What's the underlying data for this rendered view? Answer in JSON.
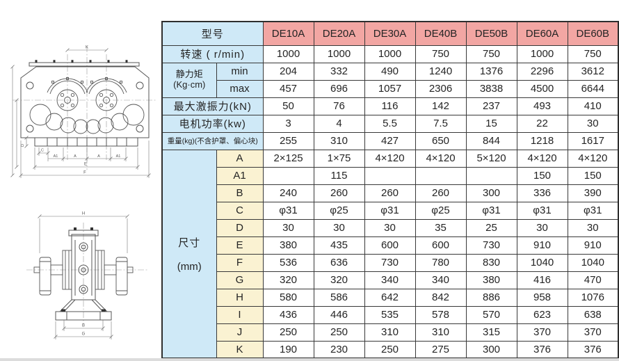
{
  "colors": {
    "header_pink": "#f2a6a3",
    "label_blue": "#cfe9f7",
    "dim_cream": "#faf2d2",
    "border": "#383838"
  },
  "table": {
    "header": {
      "model_label": "型号",
      "models": [
        "DE10A",
        "DE20A",
        "DE30A",
        "DE40B",
        "DE50B",
        "DE60A",
        "DE60B"
      ]
    },
    "speed": {
      "label": "转速 ( r/min)",
      "values": [
        "1000",
        "1000",
        "1000",
        "750",
        "750",
        "1000",
        "750"
      ]
    },
    "static_moment": {
      "label_line1": "静力矩",
      "label_line2": "(Kg·cm)",
      "min_label": "min",
      "max_label": "max",
      "min_values": [
        "204",
        "332",
        "490",
        "1240",
        "1376",
        "2296",
        "3612"
      ],
      "max_values": [
        "457",
        "696",
        "1057",
        "2306",
        "3838",
        "4500",
        "6644"
      ]
    },
    "max_force": {
      "label": "最大激振力(kN)",
      "values": [
        "50",
        "76",
        "116",
        "142",
        "237",
        "493",
        "410"
      ]
    },
    "motor_power": {
      "label": "电机功率(kw)",
      "values": [
        "3",
        "4",
        "5.5",
        "7.5",
        "15",
        "22",
        "30"
      ]
    },
    "weight": {
      "label": "重量(kg)(不含护罩、偏心块)",
      "values": [
        "255",
        "310",
        "427",
        "650",
        "844",
        "1218",
        "1617"
      ]
    },
    "dimensions": {
      "label_line1": "尺寸",
      "label_line2": "(mm)",
      "rows": [
        {
          "name": "A",
          "values": [
            "2×125",
            "1×75",
            "4×120",
            "4×120",
            "5×120",
            "4×120",
            "4×120"
          ]
        },
        {
          "name": "A1",
          "values": [
            "",
            "115",
            "",
            "",
            "",
            "150",
            "150"
          ]
        },
        {
          "name": "B",
          "values": [
            "240",
            "260",
            "260",
            "260",
            "300",
            "336",
            "390"
          ]
        },
        {
          "name": "C",
          "values": [
            "φ31",
            "φ25",
            "φ31",
            "φ25",
            "φ31",
            "φ31",
            "φ31"
          ]
        },
        {
          "name": "D",
          "values": [
            "30",
            "30",
            "30",
            "35",
            "25",
            "30",
            "30"
          ]
        },
        {
          "name": "E",
          "values": [
            "380",
            "435",
            "600",
            "600",
            "730",
            "910",
            "910"
          ]
        },
        {
          "name": "F",
          "values": [
            "536",
            "636",
            "730",
            "780",
            "830",
            "1040",
            "1040"
          ]
        },
        {
          "name": "G",
          "values": [
            "320",
            "320",
            "340",
            "340",
            "380",
            "416",
            "470"
          ]
        },
        {
          "name": "H",
          "values": [
            "580",
            "586",
            "642",
            "842",
            "886",
            "958",
            "1076"
          ]
        },
        {
          "name": "I",
          "values": [
            "436",
            "446",
            "535",
            "578",
            "570",
            "623",
            "638"
          ]
        },
        {
          "name": "J",
          "values": [
            "250",
            "250",
            "310",
            "310",
            "315",
            "370",
            "370"
          ]
        },
        {
          "name": "K",
          "values": [
            "190",
            "230",
            "250",
            "275",
            "300",
            "376",
            "376"
          ]
        }
      ]
    }
  },
  "drawings": {
    "front_view": {
      "dim_k": "K",
      "dim_c": "C",
      "dim_d": "D",
      "dim_a1_left": "A1",
      "dim_a_left": "A",
      "dim_a_right": "A",
      "dim_a1_right": "A1",
      "dim_e": "E",
      "dim_f": "F"
    },
    "side_view": {
      "dim_h": "H",
      "dim_b": "B",
      "dim_g": "G"
    }
  }
}
